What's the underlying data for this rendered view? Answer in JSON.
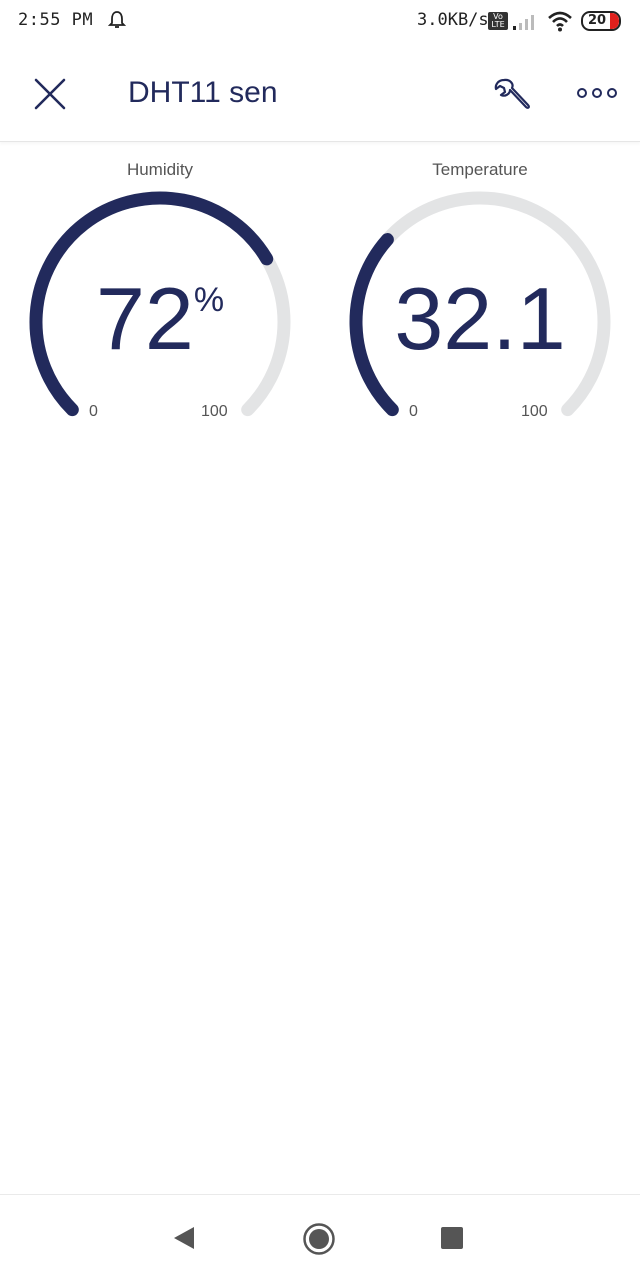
{
  "status_bar": {
    "time": "2:55 PM",
    "net_speed": "3.0KB/s",
    "volte_top": "Vo",
    "volte_bottom": "LTE",
    "battery": "20"
  },
  "app_bar": {
    "title": "DHT11 sen",
    "close_icon": "close-icon",
    "settings_icon": "wrench-icon",
    "more_icon": "more-dots-icon"
  },
  "gauges": {
    "humidity": {
      "label": "Humidity",
      "value": "72",
      "unit": "%",
      "min": "0",
      "max": "100",
      "fill_fraction": 0.72
    },
    "temperature": {
      "label": "Temperature",
      "value": "32.1",
      "unit": "",
      "min": "0",
      "max": "100",
      "fill_fraction": 0.321
    }
  },
  "colors": {
    "accent": "#222a5c",
    "track": "#e3e4e5"
  },
  "nav_bar": {
    "back_icon": "back-triangle-icon",
    "home_icon": "home-circle-icon",
    "recents_icon": "recents-square-icon"
  }
}
